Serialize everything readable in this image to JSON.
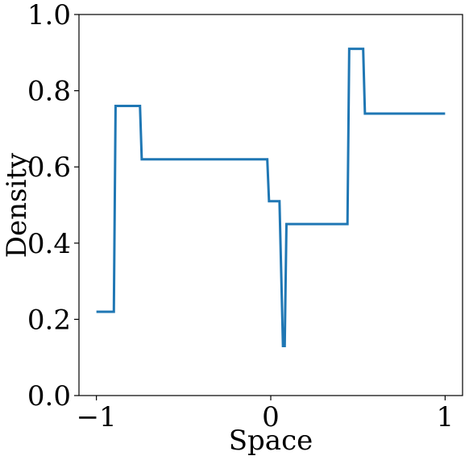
{
  "chart_data": {
    "type": "line",
    "title": "",
    "xlabel": "Space",
    "ylabel": "Density",
    "xlim": [
      -1.1,
      1.1
    ],
    "ylim": [
      0.0,
      1.0
    ],
    "x_ticks": [
      -1,
      0,
      1
    ],
    "x_tick_labels": [
      "−1",
      "0",
      "1"
    ],
    "y_ticks": [
      0.0,
      0.2,
      0.4,
      0.6,
      0.8,
      1.0
    ],
    "y_tick_labels": [
      "0.0",
      "0.2",
      "0.4",
      "0.6",
      "0.8",
      "1.0"
    ],
    "grid": false,
    "legend": "none",
    "series": [
      {
        "color": "#1f77b4",
        "x": [
          -1.0,
          -0.9,
          -0.89,
          -0.75,
          -0.74,
          -0.02,
          -0.01,
          0.05,
          0.07,
          0.08,
          0.09,
          0.44,
          0.45,
          0.53,
          0.54,
          1.0
        ],
        "y": [
          0.22,
          0.22,
          0.76,
          0.76,
          0.62,
          0.62,
          0.51,
          0.51,
          0.13,
          0.13,
          0.45,
          0.45,
          0.91,
          0.91,
          0.74,
          0.74
        ]
      }
    ]
  }
}
